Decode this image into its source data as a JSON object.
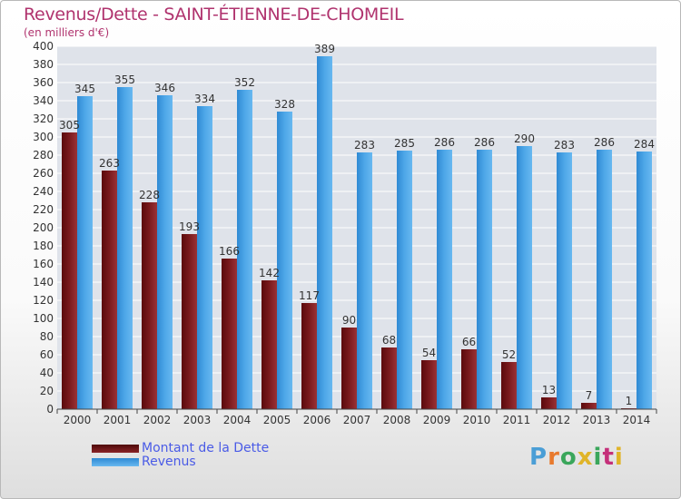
{
  "chart_data": {
    "type": "bar",
    "title": "Revenus/Dette - SAINT-ÉTIENNE-DE-CHOMEIL",
    "subtitle": "(en milliers d'€)",
    "categories": [
      "2000",
      "2001",
      "2002",
      "2003",
      "2004",
      "2005",
      "2006",
      "2007",
      "2008",
      "2009",
      "2010",
      "2011",
      "2012",
      "2013",
      "2014"
    ],
    "series": [
      {
        "name": "Montant de la Dette",
        "color": "#7a1518",
        "values": [
          305,
          263,
          228,
          193,
          166,
          142,
          117,
          90,
          68,
          54,
          66,
          52,
          13,
          7,
          1
        ]
      },
      {
        "name": "Revenus",
        "color": "#4aa3e6",
        "values": [
          345,
          355,
          346,
          334,
          352,
          328,
          389,
          283,
          285,
          286,
          286,
          290,
          283,
          286,
          284
        ]
      }
    ],
    "ylim": [
      0,
      400
    ],
    "ytick_step": 20,
    "grid": true,
    "legend_position": "bottom-left"
  },
  "logo": {
    "text": "Proxiti"
  }
}
